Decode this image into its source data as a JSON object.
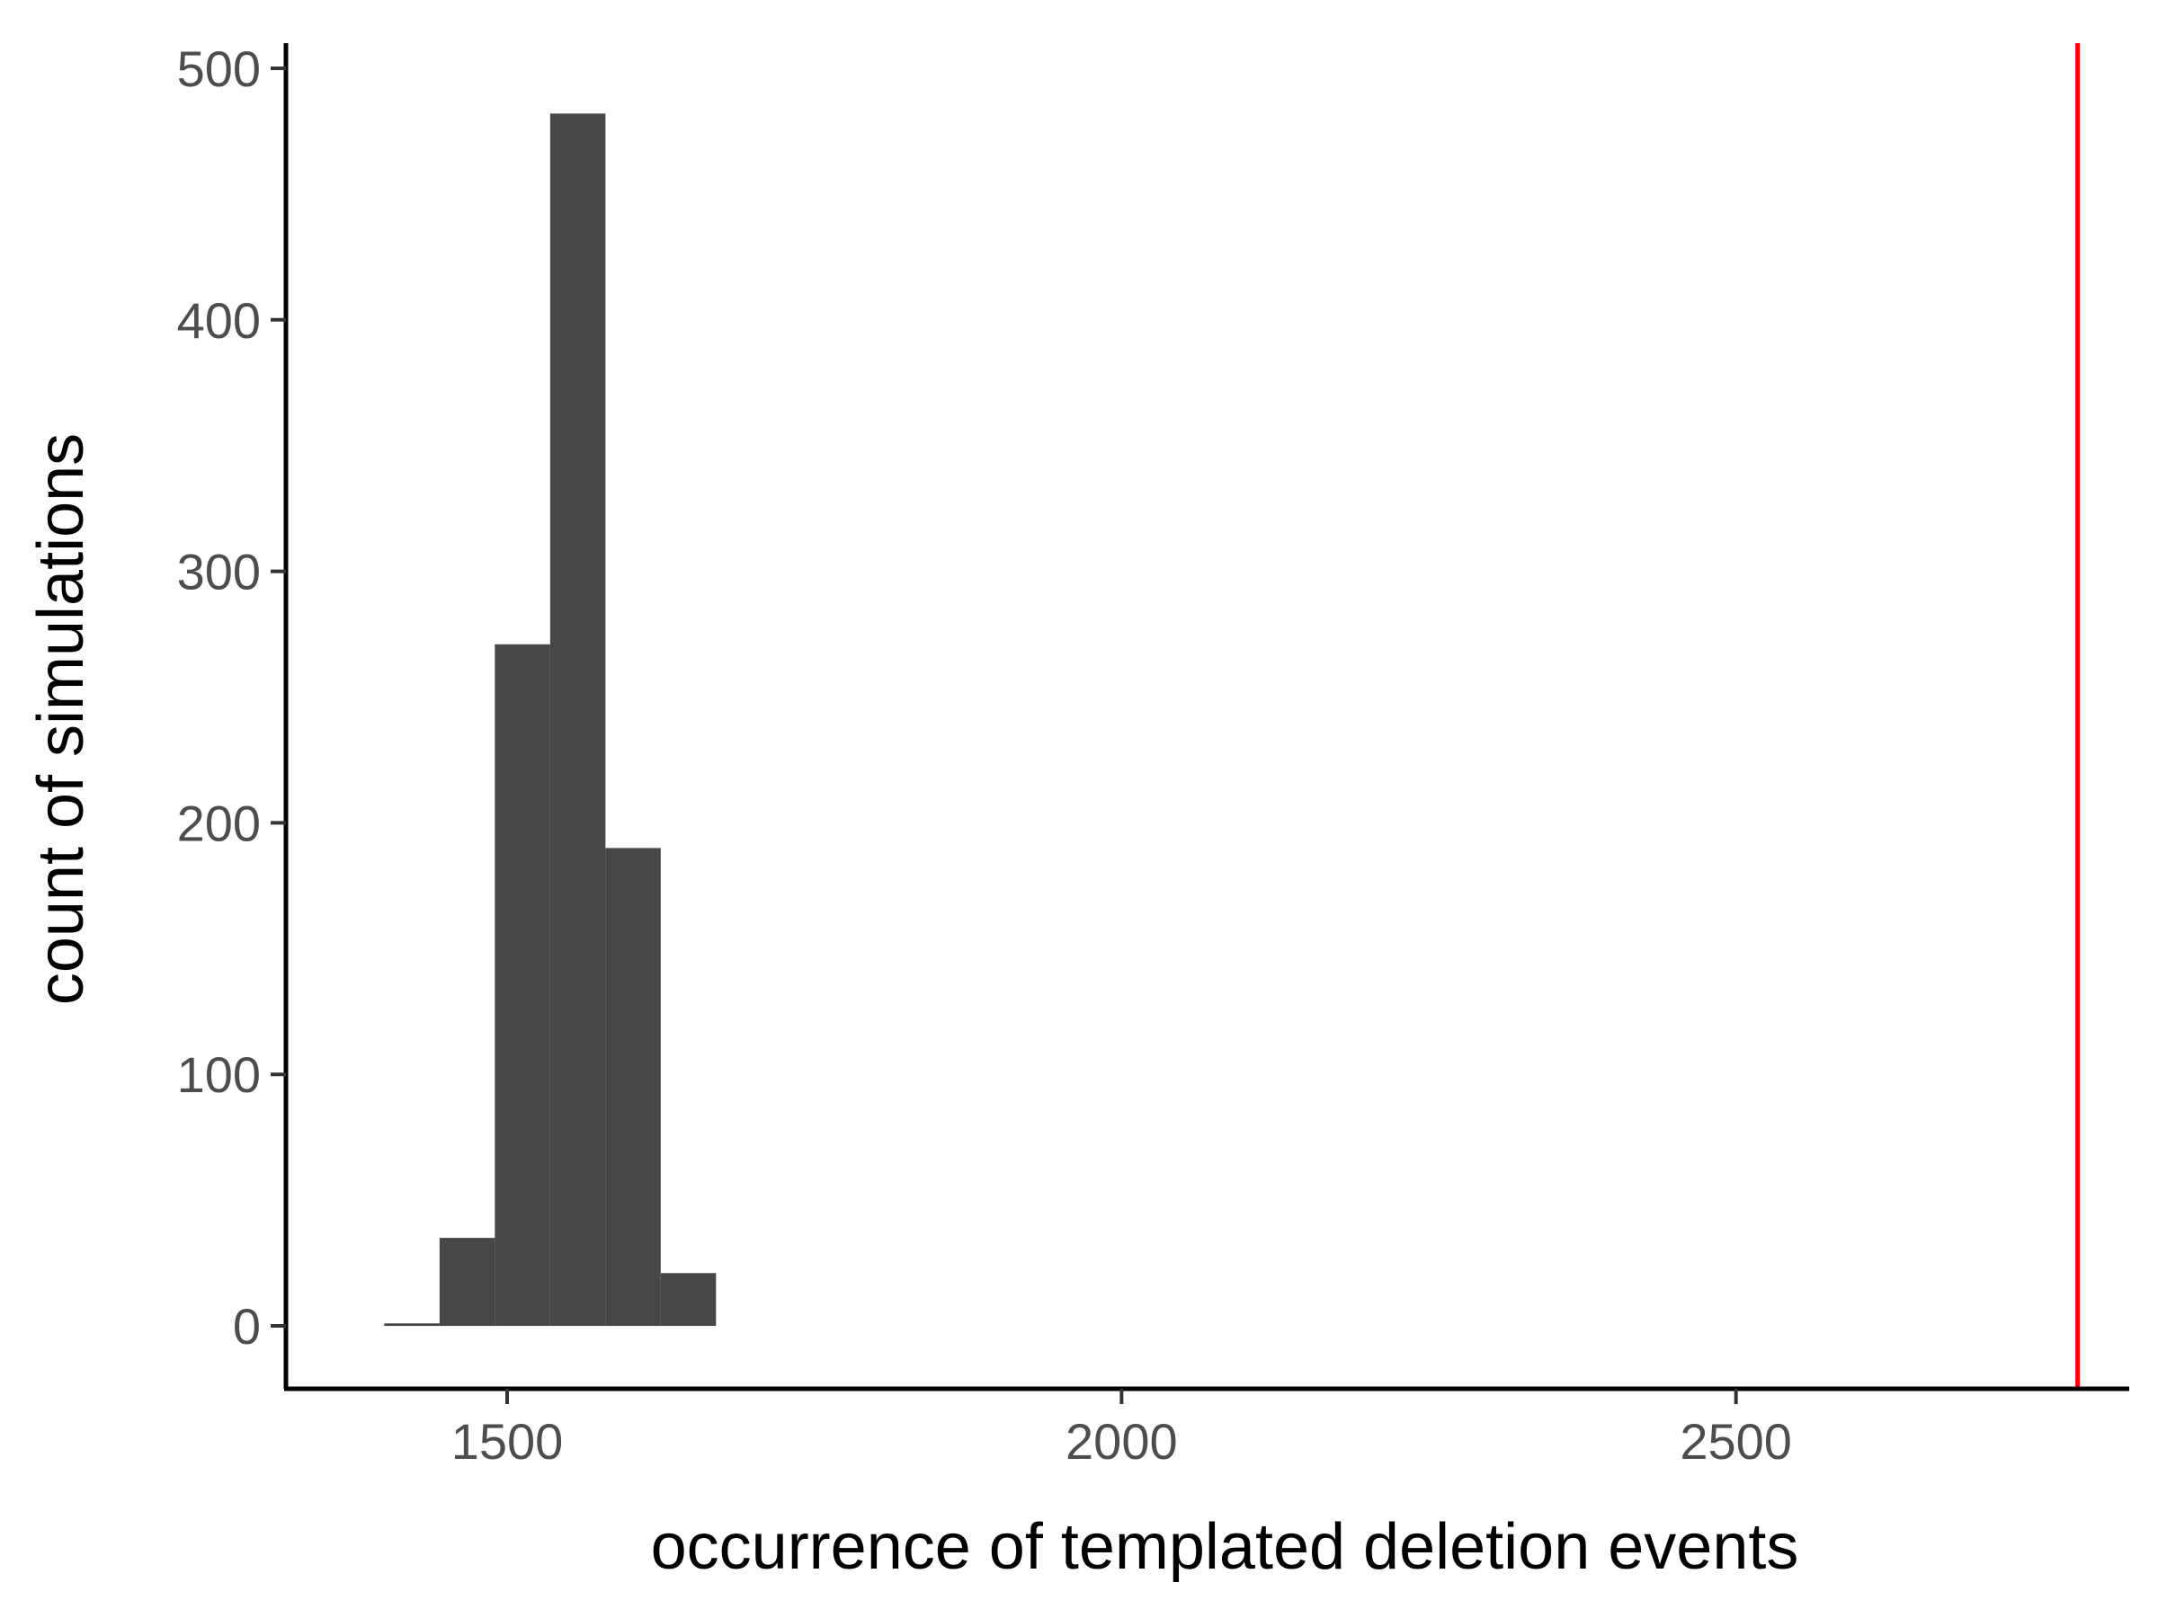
{
  "chart_data": {
    "type": "bar",
    "title": "",
    "xlabel": "occurrence of templated deletion events",
    "ylabel": "count of simulations",
    "xlim": [
      1320,
      2820
    ],
    "ylim": [
      -25,
      510
    ],
    "x_ticks": [
      1500,
      2000,
      2500
    ],
    "y_ticks": [
      0,
      100,
      200,
      300,
      400,
      500
    ],
    "bins": [
      {
        "x0": 1400,
        "x1": 1445,
        "count": 1
      },
      {
        "x0": 1445,
        "x1": 1490,
        "count": 35
      },
      {
        "x0": 1490,
        "x1": 1535,
        "count": 271
      },
      {
        "x0": 1535,
        "x1": 1580,
        "count": 482
      },
      {
        "x0": 1580,
        "x1": 1625,
        "count": 190
      },
      {
        "x0": 1625,
        "x1": 1670,
        "count": 21
      }
    ],
    "vline": {
      "x": 2778,
      "color": "#ff0000"
    },
    "bar_color": "#474747",
    "grid": false,
    "legend": "none"
  }
}
